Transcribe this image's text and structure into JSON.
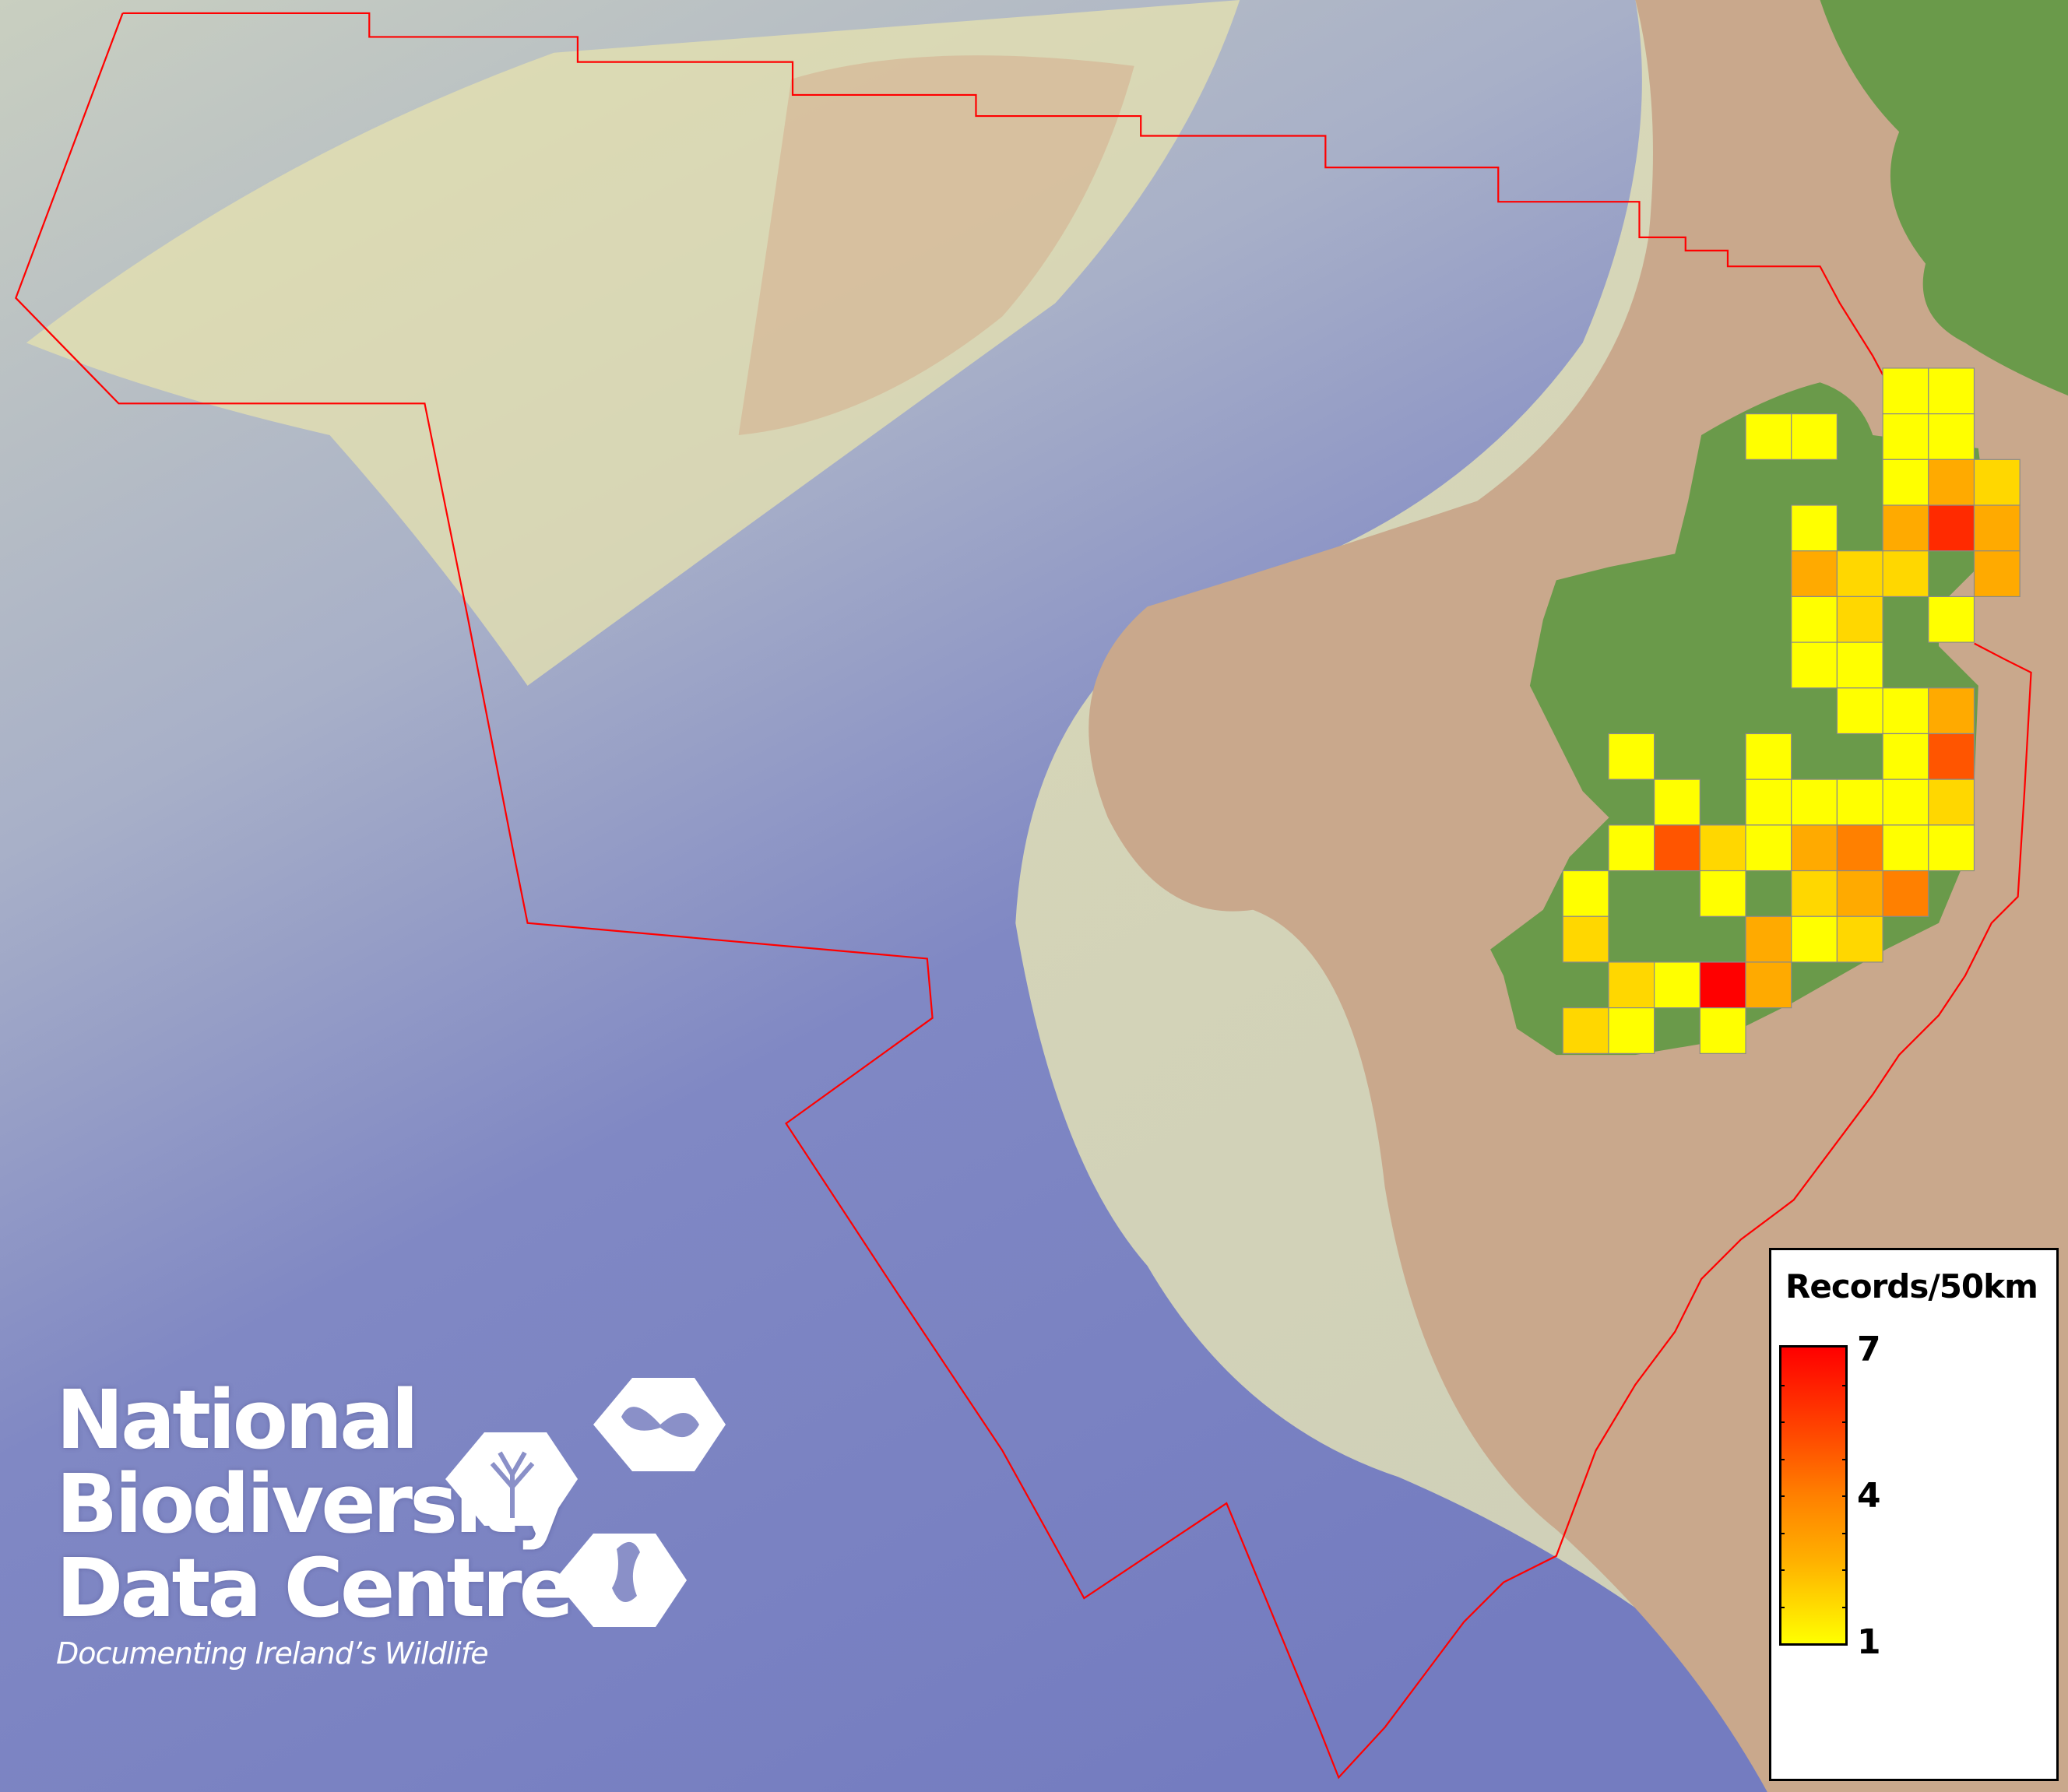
{
  "map": {
    "colors": {
      "ocean_deep": "#7a84c4",
      "shelf": "#d8dcb0",
      "land_ireland": "#6a9a4a",
      "land_mask": "#c9a88c",
      "boundary": "#ff0000",
      "grid_border": "#8a8a8a"
    },
    "grid_cells": [
      {
        "row": 0,
        "col": 7,
        "value": 1
      },
      {
        "row": 0,
        "col": 8,
        "value": 1
      },
      {
        "row": 1,
        "col": 4,
        "value": 1
      },
      {
        "row": 1,
        "col": 5,
        "value": 1
      },
      {
        "row": 1,
        "col": 7,
        "value": 1
      },
      {
        "row": 1,
        "col": 8,
        "value": 1
      },
      {
        "row": 2,
        "col": 7,
        "value": 1
      },
      {
        "row": 2,
        "col": 8,
        "value": 3
      },
      {
        "row": 2,
        "col": 9,
        "value": 2
      },
      {
        "row": 3,
        "col": 5,
        "value": 1
      },
      {
        "row": 3,
        "col": 7,
        "value": 3
      },
      {
        "row": 3,
        "col": 8,
        "value": 6
      },
      {
        "row": 3,
        "col": 9,
        "value": 3
      },
      {
        "row": 4,
        "col": 5,
        "value": 3
      },
      {
        "row": 4,
        "col": 6,
        "value": 2
      },
      {
        "row": 4,
        "col": 7,
        "value": 2
      },
      {
        "row": 4,
        "col": 9,
        "value": 3
      },
      {
        "row": 5,
        "col": 5,
        "value": 1
      },
      {
        "row": 5,
        "col": 6,
        "value": 2
      },
      {
        "row": 5,
        "col": 8,
        "value": 1
      },
      {
        "row": 6,
        "col": 5,
        "value": 1
      },
      {
        "row": 6,
        "col": 6,
        "value": 1
      },
      {
        "row": 7,
        "col": 6,
        "value": 1
      },
      {
        "row": 7,
        "col": 7,
        "value": 1
      },
      {
        "row": 7,
        "col": 8,
        "value": 3
      },
      {
        "row": 8,
        "col": 1,
        "value": 1
      },
      {
        "row": 8,
        "col": 4,
        "value": 1
      },
      {
        "row": 8,
        "col": 7,
        "value": 1
      },
      {
        "row": 8,
        "col": 8,
        "value": 5
      },
      {
        "row": 9,
        "col": 2,
        "value": 1
      },
      {
        "row": 9,
        "col": 4,
        "value": 1
      },
      {
        "row": 9,
        "col": 5,
        "value": 1
      },
      {
        "row": 9,
        "col": 6,
        "value": 1
      },
      {
        "row": 9,
        "col": 7,
        "value": 1
      },
      {
        "row": 9,
        "col": 8,
        "value": 2
      },
      {
        "row": 10,
        "col": 1,
        "value": 1
      },
      {
        "row": 10,
        "col": 2,
        "value": 5
      },
      {
        "row": 10,
        "col": 3,
        "value": 2
      },
      {
        "row": 10,
        "col": 4,
        "value": 1
      },
      {
        "row": 10,
        "col": 5,
        "value": 3
      },
      {
        "row": 10,
        "col": 6,
        "value": 4
      },
      {
        "row": 10,
        "col": 7,
        "value": 1
      },
      {
        "row": 10,
        "col": 8,
        "value": 1
      },
      {
        "row": 11,
        "col": 0,
        "value": 1
      },
      {
        "row": 11,
        "col": 3,
        "value": 1
      },
      {
        "row": 11,
        "col": 5,
        "value": 2
      },
      {
        "row": 11,
        "col": 6,
        "value": 3
      },
      {
        "row": 11,
        "col": 7,
        "value": 4
      },
      {
        "row": 12,
        "col": 0,
        "value": 2
      },
      {
        "row": 12,
        "col": 4,
        "value": 3
      },
      {
        "row": 12,
        "col": 5,
        "value": 1
      },
      {
        "row": 12,
        "col": 6,
        "value": 2
      },
      {
        "row": 13,
        "col": 1,
        "value": 2
      },
      {
        "row": 13,
        "col": 2,
        "value": 1
      },
      {
        "row": 13,
        "col": 3,
        "value": 7
      },
      {
        "row": 13,
        "col": 4,
        "value": 3
      },
      {
        "row": 14,
        "col": 0,
        "value": 2
      },
      {
        "row": 14,
        "col": 1,
        "value": 1
      },
      {
        "row": 14,
        "col": 3,
        "value": 1
      }
    ]
  },
  "legend": {
    "title": "Records/50km",
    "max_label": "7",
    "mid_label": "4",
    "min_label": "1",
    "scale_colors": [
      "#ffff00",
      "#ffd700",
      "#ffaa00",
      "#ff8000",
      "#ff5500",
      "#ff2a00",
      "#ff0000"
    ]
  },
  "logo": {
    "line1": "National",
    "line2": "Biodiversity",
    "line3": "Data Centre",
    "tagline": "Documenting Ireland’s Wildlife"
  }
}
